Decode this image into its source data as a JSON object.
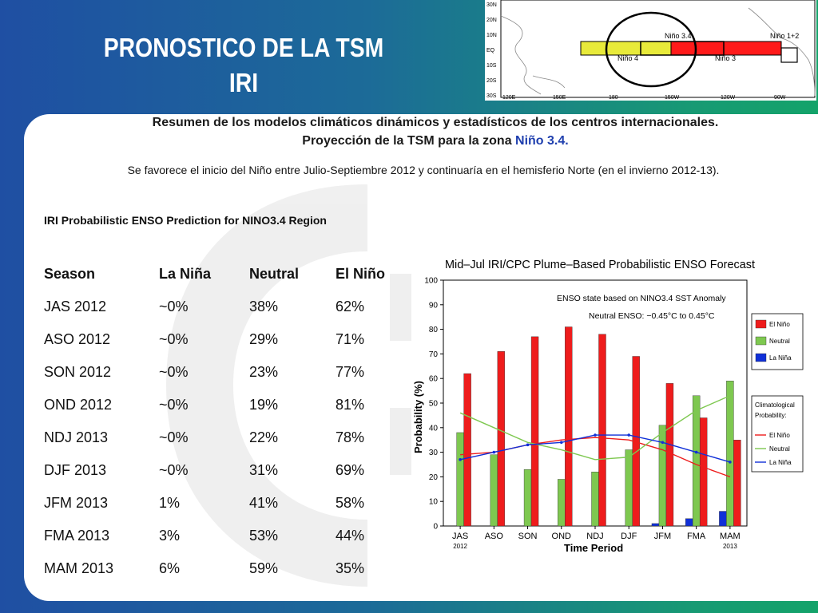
{
  "slide": {
    "title_line1": "PRONOSTICO DE LA TSM",
    "title_line2": "IRI",
    "header_line1": "Resumen de los modelos climáticos dinámicos y estadísticos de los centros internacionales.",
    "header_line2_prefix": "Proyección de la TSM para la zona ",
    "header_line2_region": "Niño 3.4.",
    "note": "Se favorece el inicio del Niño entre Julio-Septiembre 2012 y  continuaría en el hemisferio Norte (en el invierno 2012-13).",
    "iri_title": "IRI Probabilistic ENSO Prediction for NINO3.4 Region"
  },
  "map": {
    "lat_labels": [
      "30N",
      "20N",
      "10N",
      "EQ",
      "10S",
      "20S",
      "30S"
    ],
    "lon_labels": [
      "120E",
      "150E",
      "180",
      "150W",
      "120W",
      "90W"
    ],
    "regions": [
      "Niño 3.4",
      "Niño 1+2",
      "Niño 4",
      "Niño 3"
    ],
    "colors": {
      "nino4": "#e8ea3a",
      "nino3": "#ff1a1a",
      "outline": "#000000"
    }
  },
  "table": {
    "headers": [
      "Season",
      "La Niña",
      "Neutral",
      "El Niño"
    ],
    "rows": [
      [
        "JAS 2012",
        "~0%",
        "38%",
        "62%"
      ],
      [
        "ASO 2012",
        "~0%",
        "29%",
        "71%"
      ],
      [
        "SON 2012",
        "~0%",
        "23%",
        "77%"
      ],
      [
        "OND 2012",
        "~0%",
        "19%",
        "81%"
      ],
      [
        "NDJ 2013",
        "~0%",
        "22%",
        "78%"
      ],
      [
        "DJF 2013",
        "~0%",
        "31%",
        "69%"
      ],
      [
        "JFM 2013",
        "1%",
        "41%",
        "58%"
      ],
      [
        "FMA 2013",
        "3%",
        "53%",
        "44%"
      ],
      [
        "MAM 2013",
        "6%",
        "59%",
        "35%"
      ]
    ]
  },
  "chart_data": {
    "type": "bar",
    "title": "Mid–Jul IRI/CPC Plume–Based Probabilistic ENSO Forecast",
    "annotation_line1": "ENSO state based on NINO3.4 SST Anomaly",
    "annotation_line2": "Neutral ENSO: −0.45°C to 0.45°C",
    "xlabel": "Time Period",
    "ylabel": "Probability (%)",
    "categories": [
      "JAS",
      "ASO",
      "SON",
      "OND",
      "NDJ",
      "DJF",
      "JFM",
      "FMA",
      "MAM"
    ],
    "category_sublabels": [
      "2012",
      "",
      "",
      "",
      "",
      "",
      "",
      "",
      "2013"
    ],
    "ylim": [
      0,
      100
    ],
    "yticks": [
      0,
      10,
      20,
      30,
      40,
      50,
      60,
      70,
      80,
      90,
      100
    ],
    "series": [
      {
        "name": "El Niño",
        "color": "#ee1c1c",
        "values": [
          62,
          71,
          77,
          81,
          78,
          69,
          58,
          44,
          35
        ]
      },
      {
        "name": "Neutral",
        "color": "#7ec850",
        "values": [
          38,
          29,
          23,
          19,
          22,
          31,
          41,
          53,
          59
        ]
      },
      {
        "name": "La Niña",
        "color": "#1030d8",
        "values": [
          0,
          0,
          0,
          0,
          0,
          0,
          1,
          3,
          6
        ]
      }
    ],
    "climatology_title": "Climatological Probability:",
    "climatology": [
      {
        "name": "El Niño",
        "color": "#ee1c1c",
        "values": [
          29,
          30,
          33,
          35,
          36,
          35,
          31,
          25,
          20
        ]
      },
      {
        "name": "Neutral",
        "color": "#7ec850",
        "values": [
          46,
          40,
          34,
          31,
          27,
          28,
          38,
          47,
          53
        ]
      },
      {
        "name": "La Niña",
        "color": "#1030d8",
        "values": [
          27,
          30,
          33,
          34,
          37,
          37,
          34,
          30,
          26
        ]
      }
    ],
    "legend_position": "right"
  }
}
